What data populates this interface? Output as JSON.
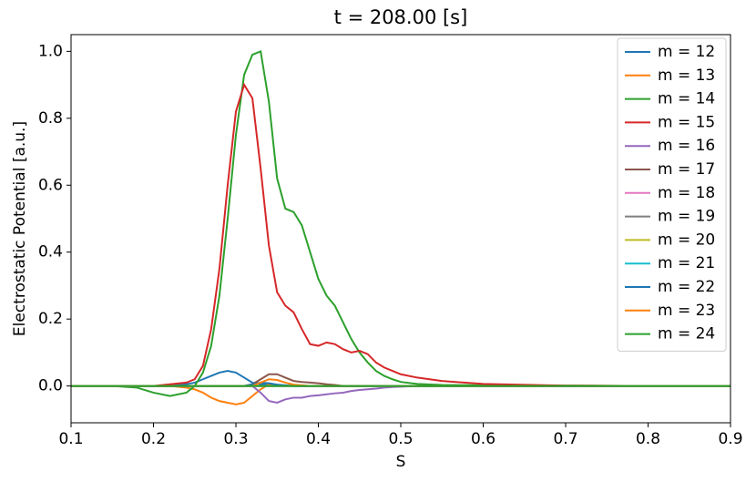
{
  "chart_data": {
    "type": "line",
    "title": "t = 208.00 [s]",
    "x_label": "S",
    "y_label": "Electrostatic Potential [a.u.]",
    "x": [
      0.1,
      0.15,
      0.18,
      0.2,
      0.22,
      0.24,
      0.25,
      0.26,
      0.27,
      0.28,
      0.29,
      0.3,
      0.31,
      0.32,
      0.33,
      0.34,
      0.35,
      0.36,
      0.37,
      0.38,
      0.39,
      0.4,
      0.41,
      0.42,
      0.43,
      0.44,
      0.45,
      0.46,
      0.47,
      0.48,
      0.49,
      0.5,
      0.52,
      0.55,
      0.6,
      0.7,
      0.8,
      0.9
    ],
    "xlim": [
      0.1,
      0.9
    ],
    "xticks": [
      0.1,
      0.2,
      0.3,
      0.4,
      0.5,
      0.6,
      0.7,
      0.8,
      0.9
    ],
    "ylim": [
      -0.11,
      1.05
    ],
    "yticks": [
      {
        "value": 0,
        "label": "0.0"
      },
      0.2,
      0.4,
      0.6,
      0.8,
      {
        "value": 1,
        "label": "1.0"
      }
    ],
    "legend": "upper right",
    "series": [
      {
        "name": "m = 12",
        "color": "#1f77b4",
        "values": [
          0,
          0,
          0,
          0,
          0,
          0.005,
          0.01,
          0.02,
          0.03,
          0.04,
          0.045,
          0.04,
          0.025,
          0.01,
          0.005,
          0.003,
          0.002,
          0.001,
          0,
          0,
          0,
          0,
          0,
          0,
          0,
          0,
          0,
          0,
          0,
          0,
          0,
          0,
          0,
          0,
          0,
          0,
          0,
          0
        ]
      },
      {
        "name": "m = 13",
        "color": "#ff7f0e",
        "values": [
          0,
          0,
          0,
          0,
          0,
          -0.005,
          -0.01,
          -0.02,
          -0.035,
          -0.045,
          -0.05,
          -0.055,
          -0.05,
          -0.03,
          -0.01,
          0.005,
          0.003,
          0.001,
          0,
          0,
          0,
          0,
          0,
          0,
          0,
          0,
          0,
          0,
          0,
          0,
          0,
          0,
          0,
          0,
          0,
          0,
          0,
          0
        ]
      },
      {
        "name": "m = 14",
        "color": "#2ca02c",
        "values": [
          0,
          0,
          -0.005,
          -0.02,
          -0.03,
          -0.02,
          0,
          0.04,
          0.12,
          0.27,
          0.5,
          0.75,
          0.93,
          0.99,
          1.0,
          0.85,
          0.62,
          0.53,
          0.52,
          0.48,
          0.4,
          0.32,
          0.27,
          0.24,
          0.19,
          0.14,
          0.1,
          0.07,
          0.045,
          0.03,
          0.02,
          0.012,
          0.006,
          0.003,
          0.002,
          0.001,
          0,
          0
        ]
      },
      {
        "name": "m = 15",
        "color": "#d62728",
        "values": [
          0,
          0,
          0,
          0,
          0.005,
          0.01,
          0.02,
          0.06,
          0.17,
          0.35,
          0.6,
          0.82,
          0.9,
          0.86,
          0.65,
          0.42,
          0.28,
          0.24,
          0.22,
          0.17,
          0.125,
          0.12,
          0.13,
          0.125,
          0.11,
          0.1,
          0.105,
          0.095,
          0.07,
          0.055,
          0.045,
          0.035,
          0.025,
          0.015,
          0.006,
          0.001,
          0,
          0
        ]
      },
      {
        "name": "m = 16",
        "color": "#9467bd",
        "values": [
          0,
          0,
          0,
          0,
          0,
          0,
          0,
          0,
          0,
          0,
          0,
          0,
          0,
          0,
          -0.02,
          -0.045,
          -0.05,
          -0.04,
          -0.035,
          -0.035,
          -0.03,
          -0.028,
          -0.025,
          -0.022,
          -0.02,
          -0.015,
          -0.012,
          -0.01,
          -0.008,
          -0.005,
          -0.003,
          -0.002,
          0,
          0,
          0,
          0,
          0,
          0
        ]
      },
      {
        "name": "m = 17",
        "color": "#8c564b",
        "values": [
          0,
          0,
          0,
          0,
          0,
          0,
          0,
          0,
          0,
          0,
          0,
          0,
          0,
          0.005,
          0.02,
          0.035,
          0.035,
          0.025,
          0.015,
          0.012,
          0.01,
          0.008,
          0.005,
          0.003,
          0,
          0,
          0,
          0,
          0,
          0,
          0,
          0,
          0,
          0,
          0,
          0,
          0,
          0
        ]
      },
      {
        "name": "m = 18",
        "color": "#e377c2",
        "values": [
          0,
          0,
          0,
          0,
          0,
          0,
          0,
          0,
          0,
          0,
          0,
          0,
          0,
          0,
          0,
          0,
          0,
          0,
          0,
          0,
          0,
          0,
          0,
          0,
          0,
          0,
          0,
          0,
          0,
          0,
          0,
          0,
          0,
          0,
          0,
          0,
          0,
          0
        ]
      },
      {
        "name": "m = 19",
        "color": "#7f7f7f",
        "values": [
          0,
          0,
          0,
          0,
          0,
          0,
          0,
          0,
          0,
          0,
          0,
          0,
          0,
          0,
          0,
          0,
          0,
          0,
          0,
          0,
          0,
          0,
          0,
          0,
          0,
          0,
          0,
          0,
          0,
          0,
          0,
          0,
          0,
          0,
          0,
          0,
          0,
          0
        ]
      },
      {
        "name": "m = 20",
        "color": "#bcbd22",
        "values": [
          0,
          0,
          0,
          0,
          0,
          0,
          0,
          0,
          0,
          0,
          0,
          0,
          0,
          0,
          0,
          0,
          0,
          0,
          0,
          0,
          0,
          0,
          0,
          0,
          0,
          0,
          0,
          0,
          0,
          0,
          0,
          0,
          0,
          0,
          0,
          0,
          0,
          0
        ]
      },
      {
        "name": "m = 21",
        "color": "#17becf",
        "values": [
          0,
          0,
          0,
          0,
          0,
          0,
          0,
          0,
          0,
          0,
          0,
          0,
          0,
          0,
          0,
          0,
          0,
          0,
          0,
          0,
          0,
          0,
          0,
          0,
          0,
          0,
          0,
          0,
          0,
          0,
          0,
          0,
          0,
          0,
          0,
          0,
          0,
          0
        ]
      },
      {
        "name": "m = 22",
        "color": "#1f77b4",
        "values": [
          0,
          0,
          0,
          0,
          0,
          0,
          0,
          0,
          0,
          0,
          0,
          0,
          0,
          0.005,
          0.01,
          0.008,
          0.004,
          0.002,
          0,
          0,
          0,
          0,
          0,
          0,
          0,
          0,
          0,
          0,
          0,
          0,
          0,
          0,
          0,
          0,
          0,
          0,
          0,
          0
        ]
      },
      {
        "name": "m = 23",
        "color": "#ff7f0e",
        "values": [
          0,
          0,
          0,
          0,
          0,
          0,
          0,
          0,
          0,
          0,
          0,
          0,
          0,
          0,
          0.01,
          0.02,
          0.018,
          0.01,
          0.004,
          0.002,
          0,
          0,
          0,
          0,
          0,
          0,
          0,
          0,
          0,
          0,
          0,
          0,
          0,
          0,
          0,
          0,
          0,
          0
        ]
      },
      {
        "name": "m = 24",
        "color": "#2ca02c",
        "values": [
          0,
          0,
          0,
          0,
          0,
          0,
          0,
          0,
          0,
          0,
          0,
          0,
          0,
          0,
          0,
          0,
          0,
          0,
          0,
          0,
          0,
          0,
          0,
          0,
          0,
          0,
          0,
          0,
          0,
          0,
          0,
          0,
          0,
          0,
          0,
          0,
          0,
          0
        ]
      }
    ]
  }
}
